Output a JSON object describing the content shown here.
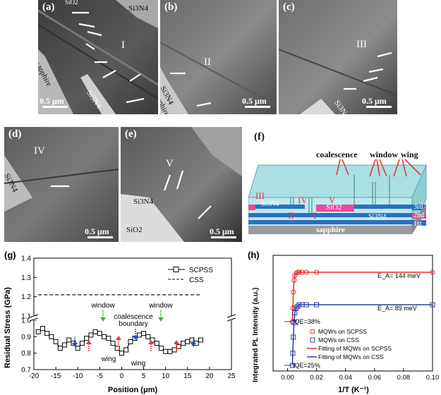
{
  "figure": {
    "panels": {
      "a": {
        "label": "(a)",
        "region": "I",
        "texts": [
          "SiO2",
          "Si3N4",
          "sapphire",
          "Si3N4"
        ],
        "scale": "0.5 μm"
      },
      "b": {
        "label": "(b)",
        "region": "II",
        "texts": [
          "Si3N4",
          "sapphire"
        ],
        "scale": "0.5 μm"
      },
      "c": {
        "label": "(c)",
        "region": "III",
        "texts": [
          "Si3N4"
        ],
        "scale": "0.5 μm"
      },
      "d": {
        "label": "(d)",
        "region": "IV",
        "texts": [
          "Si3N4"
        ],
        "scale": "0.5 μm"
      },
      "e": {
        "label": "(e)",
        "region": "V",
        "texts": [
          "Si3N4",
          "SiO2"
        ],
        "scale": "0.5 μm"
      }
    },
    "f": {
      "label": "(f)",
      "callouts": [
        "coalescence",
        "window",
        "wing"
      ],
      "regions": [
        "III",
        "IV",
        "V",
        "I",
        "II"
      ],
      "layers": [
        "Si3N4",
        "SiO2",
        "Si3N4",
        "sapphire"
      ],
      "levels": [
        "3rd",
        "2nd",
        "1st"
      ]
    },
    "g": {
      "label": "(g)",
      "annotations": {
        "window_left": "window",
        "window_right": "window",
        "coalescence": "coalescence",
        "boundary": "boundary",
        "wing_left": "wing",
        "wing_mid": "wing"
      },
      "legend": [
        "SCPSS",
        "CSS"
      ]
    },
    "h": {
      "label": "(h)",
      "annotations": {
        "ea1": "E_A= 144 meV",
        "ea2": "E_A= 89 meV",
        "iqe1": "IQE=38%",
        "iqe2": "IQE=25%"
      },
      "legend": [
        "MQWs on SCPSS",
        "MQWs on CSS",
        "Fitting of MQWs on SCPSS",
        "Fitting of MQWs on CSS"
      ]
    }
  },
  "chart_data": [
    {
      "type": "line",
      "title": "",
      "xlabel": "Position (μm)",
      "ylabel": "Residual Stress (GPa)",
      "xlim": [
        -20,
        25
      ],
      "ylim": [
        0.7,
        1.4
      ],
      "xticks": [
        "-20",
        "-15",
        "-10",
        "-5",
        "0",
        "5",
        "10",
        "15",
        "20",
        "25"
      ],
      "yticks": [
        "0.7",
        "0.8",
        "0.9",
        "1.0",
        "1.1",
        "1.2",
        "1.3",
        "1.4"
      ],
      "y_axis_break": true,
      "legend_position": "top-right",
      "series": [
        {
          "name": "SCPSS",
          "color": "#000000",
          "marker": "open-square",
          "x": [
            -19,
            -18,
            -17,
            -16,
            -15,
            -14,
            -13,
            -12,
            -11,
            -10,
            -9,
            -8,
            -7,
            -6,
            -5,
            -4,
            -3,
            -2,
            -1,
            0,
            1,
            2,
            3,
            4,
            5,
            6,
            7,
            8,
            9,
            10,
            11,
            12,
            13,
            14,
            15,
            16,
            17,
            18
          ],
          "y": [
            0.93,
            0.95,
            0.92,
            0.9,
            0.87,
            0.83,
            0.85,
            0.88,
            0.86,
            0.83,
            0.86,
            0.89,
            0.91,
            0.93,
            0.92,
            0.9,
            0.89,
            0.86,
            0.83,
            0.8,
            0.82,
            0.87,
            0.89,
            0.91,
            0.92,
            0.9,
            0.88,
            0.86,
            0.83,
            0.81,
            0.81,
            0.82,
            0.84,
            0.86,
            0.87,
            0.88,
            0.86,
            0.88
          ]
        },
        {
          "name": "CSS",
          "color": "#000000",
          "style": "dashed",
          "x": [
            -19,
            18
          ],
          "y": [
            1.21,
            1.21
          ]
        }
      ]
    },
    {
      "type": "scatter",
      "title": "",
      "xlabel": "1/T (K⁻¹)",
      "ylabel": "Integrated PL Intensity (a.u.)",
      "xlim": [
        -0.01,
        0.1
      ],
      "xticks": [
        "0.00",
        "0.02",
        "0.04",
        "0.06",
        "0.08",
        "0.10"
      ],
      "legend_position": "center-right",
      "series": [
        {
          "name": "MQWs on SCPSS",
          "color": "#e8302a",
          "marker": "open-circle",
          "x": [
            0.0033,
            0.0036,
            0.004,
            0.0045,
            0.005,
            0.006,
            0.007,
            0.008,
            0.01,
            0.013,
            0.02,
            0.1
          ],
          "y": [
            0.38,
            0.55,
            0.75,
            0.9,
            0.96,
            0.99,
            1.0,
            1.0,
            1.0,
            1.0,
            1.0,
            1.0
          ]
        },
        {
          "name": "MQWs on CSS",
          "color": "#2a3f9e",
          "marker": "open-square",
          "x": [
            0.0033,
            0.0036,
            0.004,
            0.0045,
            0.005,
            0.006,
            0.007,
            0.008,
            0.01,
            0.013,
            0.02,
            0.1
          ],
          "y": [
            0.25,
            0.4,
            0.6,
            0.78,
            0.9,
            0.96,
            0.98,
            1.0,
            1.0,
            1.0,
            1.0,
            1.0
          ]
        },
        {
          "name": "Fitting of MQWs on SCPSS",
          "color": "#e8302a",
          "style": "solid"
        },
        {
          "name": "Fitting of MQWs on CSS",
          "color": "#2a3f9e",
          "style": "solid"
        }
      ]
    }
  ]
}
